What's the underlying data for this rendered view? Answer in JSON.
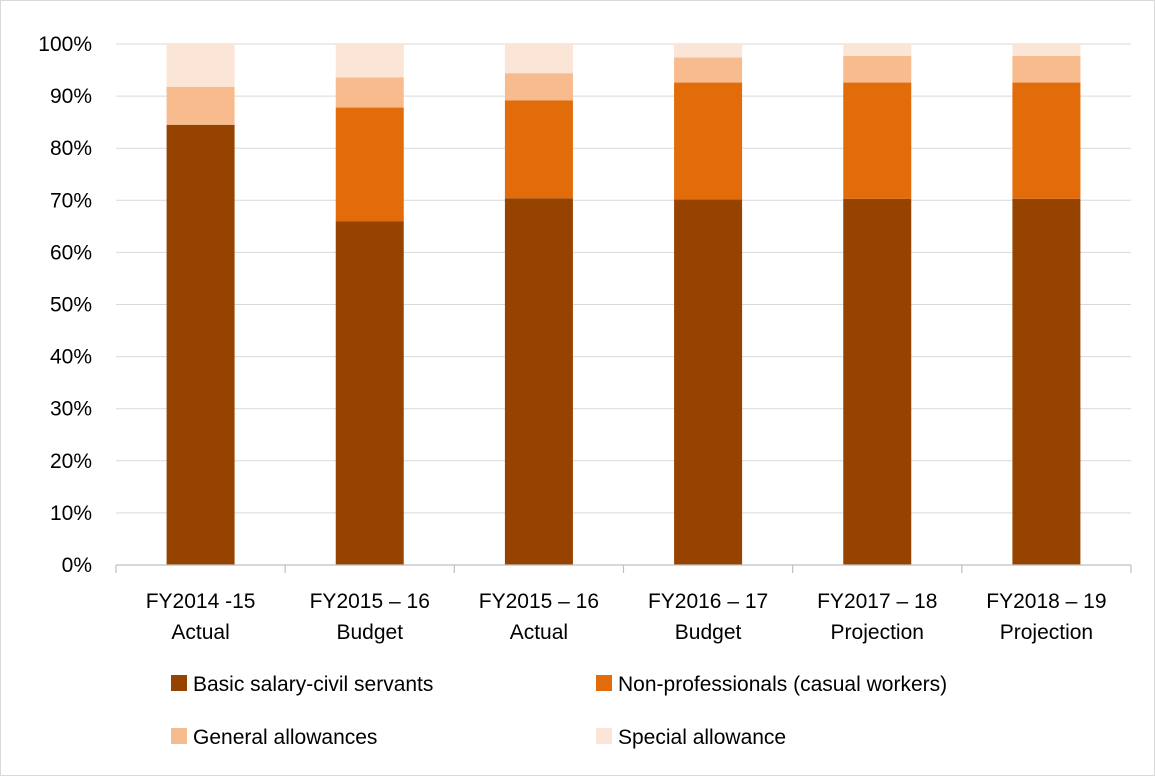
{
  "chart_data": {
    "type": "bar",
    "stacked": true,
    "percent_stacked": true,
    "categories": [
      [
        "FY2014 -15",
        "Actual"
      ],
      [
        "FY2015 – 16",
        "Budget"
      ],
      [
        "FY2015 – 16",
        "Actual"
      ],
      [
        "FY2016 – 17",
        "Budget"
      ],
      [
        "FY2017 – 18",
        "Projection"
      ],
      [
        "FY2018 – 19",
        "Projection"
      ]
    ],
    "series": [
      {
        "name": "Basic salary-civil servants",
        "color": "#974300",
        "values": [
          84.5,
          66,
          70.4,
          70.2,
          70.3,
          70.3
        ]
      },
      {
        "name": "Non-professionals (casual workers)",
        "color": "#e26b0a",
        "values": [
          0,
          21.8,
          18.8,
          22.4,
          22.3,
          22.3
        ]
      },
      {
        "name": "General allowances",
        "color": "#f7bb8d",
        "values": [
          7.3,
          5.8,
          5.2,
          4.8,
          5.1,
          5.1
        ]
      },
      {
        "name": "Special allowance",
        "color": "#fbe5d6",
        "values": [
          8.2,
          6.4,
          5.6,
          2.6,
          2.3,
          2.3
        ]
      }
    ],
    "y_ticks": [
      "0%",
      "10%",
      "20%",
      "30%",
      "40%",
      "50%",
      "60%",
      "70%",
      "80%",
      "90%",
      "100%"
    ],
    "ylim": [
      0,
      100
    ],
    "grid": true,
    "legend_position": "bottom",
    "title": "",
    "xlabel": "",
    "ylabel": ""
  }
}
